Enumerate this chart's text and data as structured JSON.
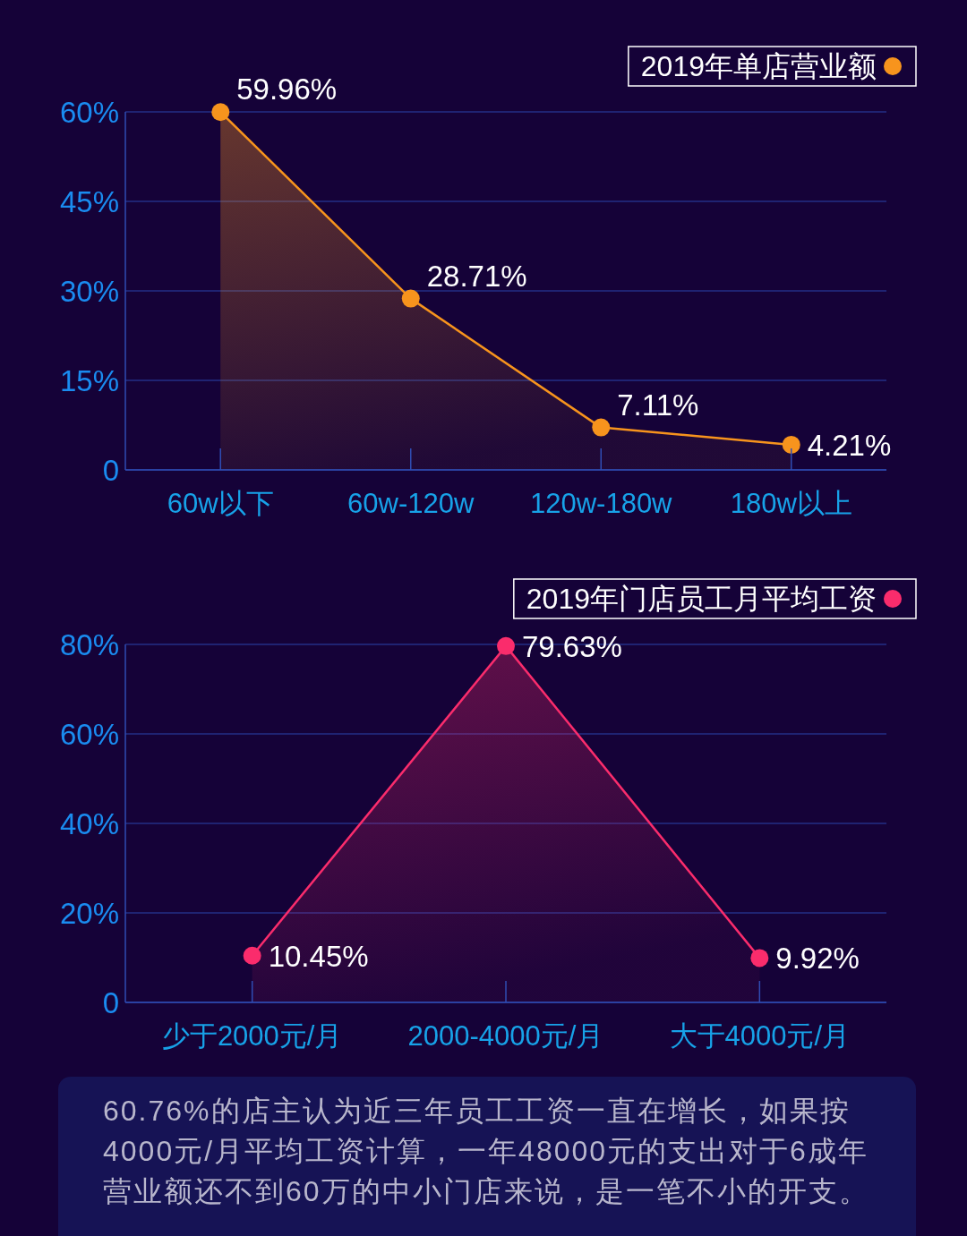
{
  "chart_data": [
    {
      "type": "area",
      "categories": [
        "60w以下",
        "60w-120w",
        "120w-180w",
        "180w以上"
      ],
      "series": [
        {
          "name": "2019年单店营业额",
          "color": "#f7941d",
          "values": [
            59.96,
            28.71,
            7.11,
            4.21
          ],
          "value_labels": [
            "59.96%",
            "28.71%",
            "7.11%",
            "4.21%"
          ]
        }
      ],
      "ylim": [
        0,
        60
      ],
      "yticks": [
        0,
        {
          "value": 15,
          "label": "15%"
        },
        {
          "value": 30,
          "label": "30%"
        },
        {
          "value": 45,
          "label": "45%"
        },
        {
          "value": 60,
          "label": "60%"
        }
      ],
      "grid": "y",
      "legend": "top right",
      "marker": "circle"
    },
    {
      "type": "area",
      "categories": [
        "少于2000元/月",
        "2000-4000元/月",
        "大于4000元/月"
      ],
      "series": [
        {
          "name": "2019年门店员工月平均工资",
          "color": "#fa2c6c",
          "values": [
            10.45,
            79.63,
            9.92
          ],
          "value_labels": [
            "10.45%",
            "79.63%",
            "9.92%"
          ]
        }
      ],
      "ylim": [
        0,
        80
      ],
      "yticks": [
        0,
        {
          "value": 20,
          "label": "20%"
        },
        {
          "value": 40,
          "label": "40%"
        },
        {
          "value": 60,
          "label": "60%"
        },
        {
          "value": 80,
          "label": "80%"
        }
      ],
      "grid": "y",
      "legend": "top right",
      "marker": "circle"
    },
    {
      "type": "other",
      "annotations": [
        "60.76%的店主认为近三年员工工资一直在增长，如果按4000元/月平均工资计算，一年48000元的支出对于6成年营业额还不到60万的中小门店来说，是一笔不小的开支。"
      ]
    }
  ]
}
